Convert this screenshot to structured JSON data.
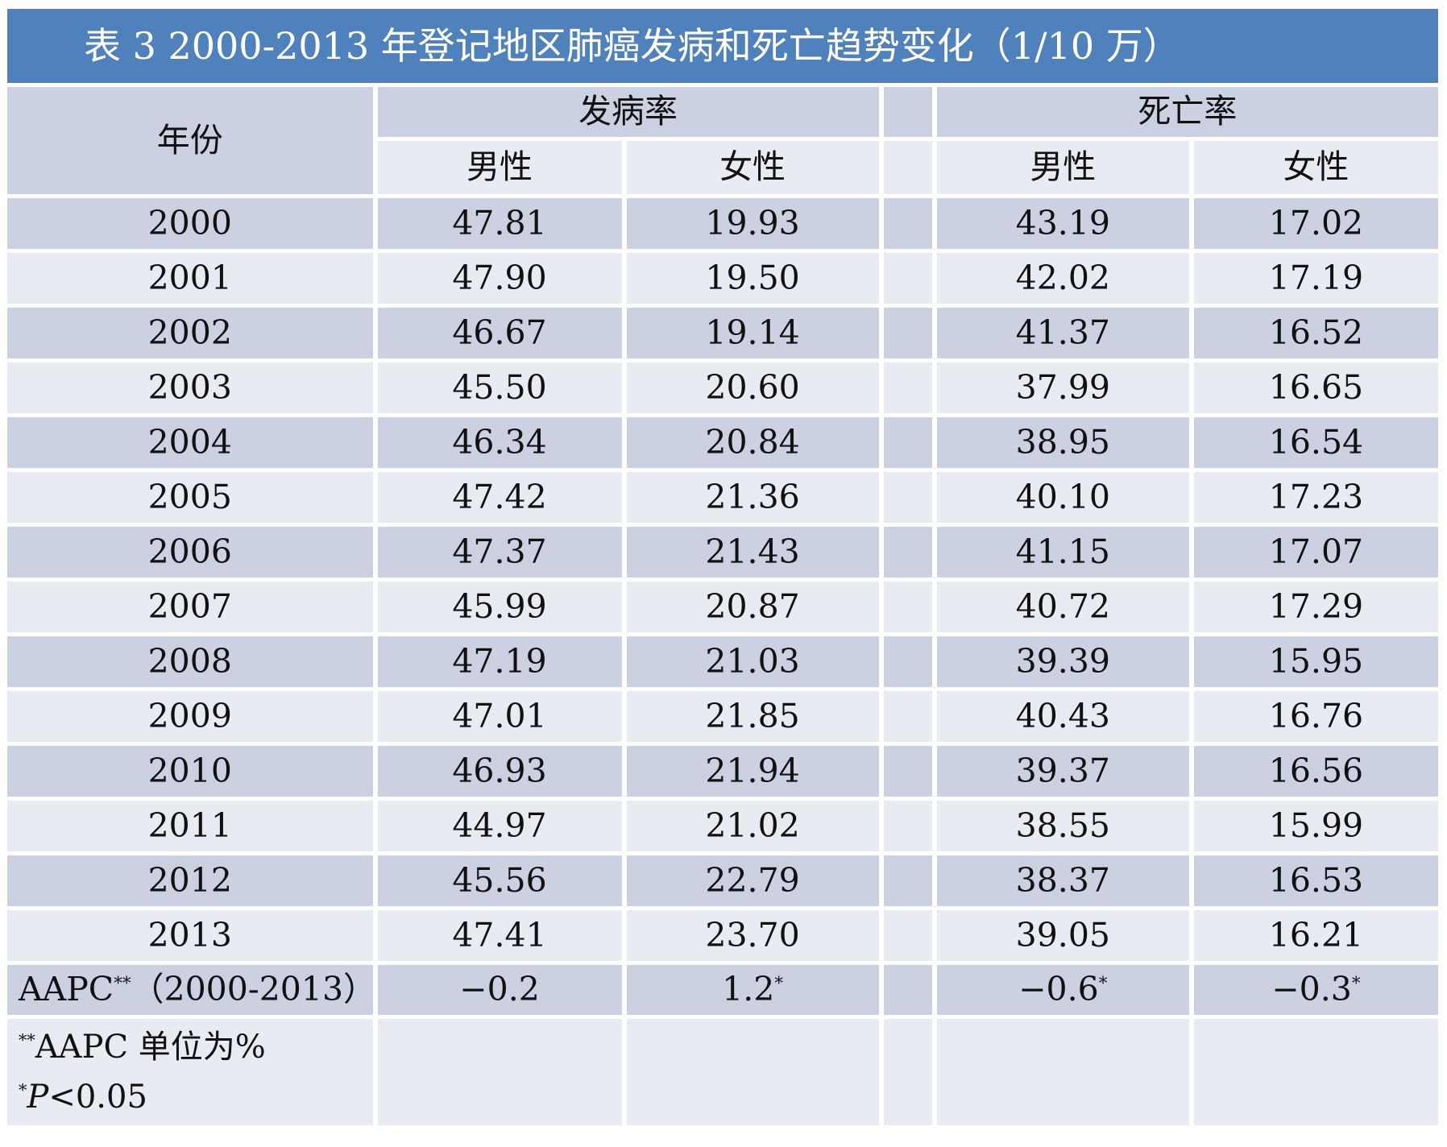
{
  "title": "表 3 2000-2013 年登记地区肺癌发病和死亡趋势变化（1/10 万）",
  "colors": {
    "title_bar": "#4f81bd",
    "title_text": "#ffffff",
    "row_dark": "#ccd1e2",
    "row_light": "#e9ebf3",
    "border": "#ffffff",
    "text": "#111111"
  },
  "table": {
    "col_year": "年份",
    "group_incidence": "发病率",
    "group_mortality": "死亡率",
    "sub_male": "男性",
    "sub_female": "女性",
    "rows": [
      {
        "year": "2000",
        "inc_m": "47.81",
        "inc_f": "19.93",
        "mort_m": "43.19",
        "mort_f": "17.02"
      },
      {
        "year": "2001",
        "inc_m": "47.90",
        "inc_f": "19.50",
        "mort_m": "42.02",
        "mort_f": "17.19"
      },
      {
        "year": "2002",
        "inc_m": "46.67",
        "inc_f": "19.14",
        "mort_m": "41.37",
        "mort_f": "16.52"
      },
      {
        "year": "2003",
        "inc_m": "45.50",
        "inc_f": "20.60",
        "mort_m": "37.99",
        "mort_f": "16.65"
      },
      {
        "year": "2004",
        "inc_m": "46.34",
        "inc_f": "20.84",
        "mort_m": "38.95",
        "mort_f": "16.54"
      },
      {
        "year": "2005",
        "inc_m": "47.42",
        "inc_f": "21.36",
        "mort_m": "40.10",
        "mort_f": "17.23"
      },
      {
        "year": "2006",
        "inc_m": "47.37",
        "inc_f": "21.43",
        "mort_m": "41.15",
        "mort_f": "17.07"
      },
      {
        "year": "2007",
        "inc_m": "45.99",
        "inc_f": "20.87",
        "mort_m": "40.72",
        "mort_f": "17.29"
      },
      {
        "year": "2008",
        "inc_m": "47.19",
        "inc_f": "21.03",
        "mort_m": "39.39",
        "mort_f": "15.95"
      },
      {
        "year": "2009",
        "inc_m": "47.01",
        "inc_f": "21.85",
        "mort_m": "40.43",
        "mort_f": "16.76"
      },
      {
        "year": "2010",
        "inc_m": "46.93",
        "inc_f": "21.94",
        "mort_m": "39.37",
        "mort_f": "16.56"
      },
      {
        "year": "2011",
        "inc_m": "44.97",
        "inc_f": "21.02",
        "mort_m": "38.55",
        "mort_f": "15.99"
      },
      {
        "year": "2012",
        "inc_m": "45.56",
        "inc_f": "22.79",
        "mort_m": "38.37",
        "mort_f": "16.53"
      },
      {
        "year": "2013",
        "inc_m": "47.41",
        "inc_f": "23.70",
        "mort_m": "39.05",
        "mort_f": "16.21"
      }
    ],
    "aapc": {
      "label_pre": "AAPC",
      "label_sup": "**",
      "label_post": "（2000-2013）",
      "inc_m": {
        "value": "−0.2",
        "sup": ""
      },
      "inc_f": {
        "value": "1.2",
        "sup": "*"
      },
      "mort_m": {
        "value": "−0.6",
        "sup": "*"
      },
      "mort_f": {
        "value": "−0.3",
        "sup": "*"
      }
    },
    "footnotes": [
      {
        "sup": "**",
        "italic": "",
        "text": "AAPC 单位为%"
      },
      {
        "sup": "*",
        "italic": "P",
        "text": "<0.05"
      }
    ]
  },
  "chart_data": {
    "type": "table",
    "title": "表 3 2000-2013 年登记地区肺癌发病和死亡趋势变化（1/10 万）",
    "unit": "1/10万",
    "categories": [
      2000,
      2001,
      2002,
      2003,
      2004,
      2005,
      2006,
      2007,
      2008,
      2009,
      2010,
      2011,
      2012,
      2013
    ],
    "series": [
      {
        "name": "发病率-男性",
        "values": [
          47.81,
          47.9,
          46.67,
          45.5,
          46.34,
          47.42,
          47.37,
          45.99,
          47.19,
          47.01,
          46.93,
          44.97,
          45.56,
          47.41
        ]
      },
      {
        "name": "发病率-女性",
        "values": [
          19.93,
          19.5,
          19.14,
          20.6,
          20.84,
          21.36,
          21.43,
          20.87,
          21.03,
          21.85,
          21.94,
          21.02,
          22.79,
          23.7
        ]
      },
      {
        "name": "死亡率-男性",
        "values": [
          43.19,
          42.02,
          41.37,
          37.99,
          38.95,
          40.1,
          41.15,
          40.72,
          39.39,
          40.43,
          39.37,
          38.55,
          38.37,
          39.05
        ]
      },
      {
        "name": "死亡率-女性",
        "values": [
          17.02,
          17.19,
          16.52,
          16.65,
          16.54,
          17.23,
          17.07,
          17.29,
          15.95,
          16.76,
          16.56,
          15.99,
          16.53,
          16.21
        ]
      }
    ],
    "aapc_2000_2013": {
      "发病率-男性": "-0.2",
      "发病率-女性": "1.2*",
      "死亡率-男性": "-0.6*",
      "死亡率-女性": "-0.3*"
    },
    "footnotes": [
      "**AAPC 单位为%",
      "*P<0.05"
    ]
  }
}
